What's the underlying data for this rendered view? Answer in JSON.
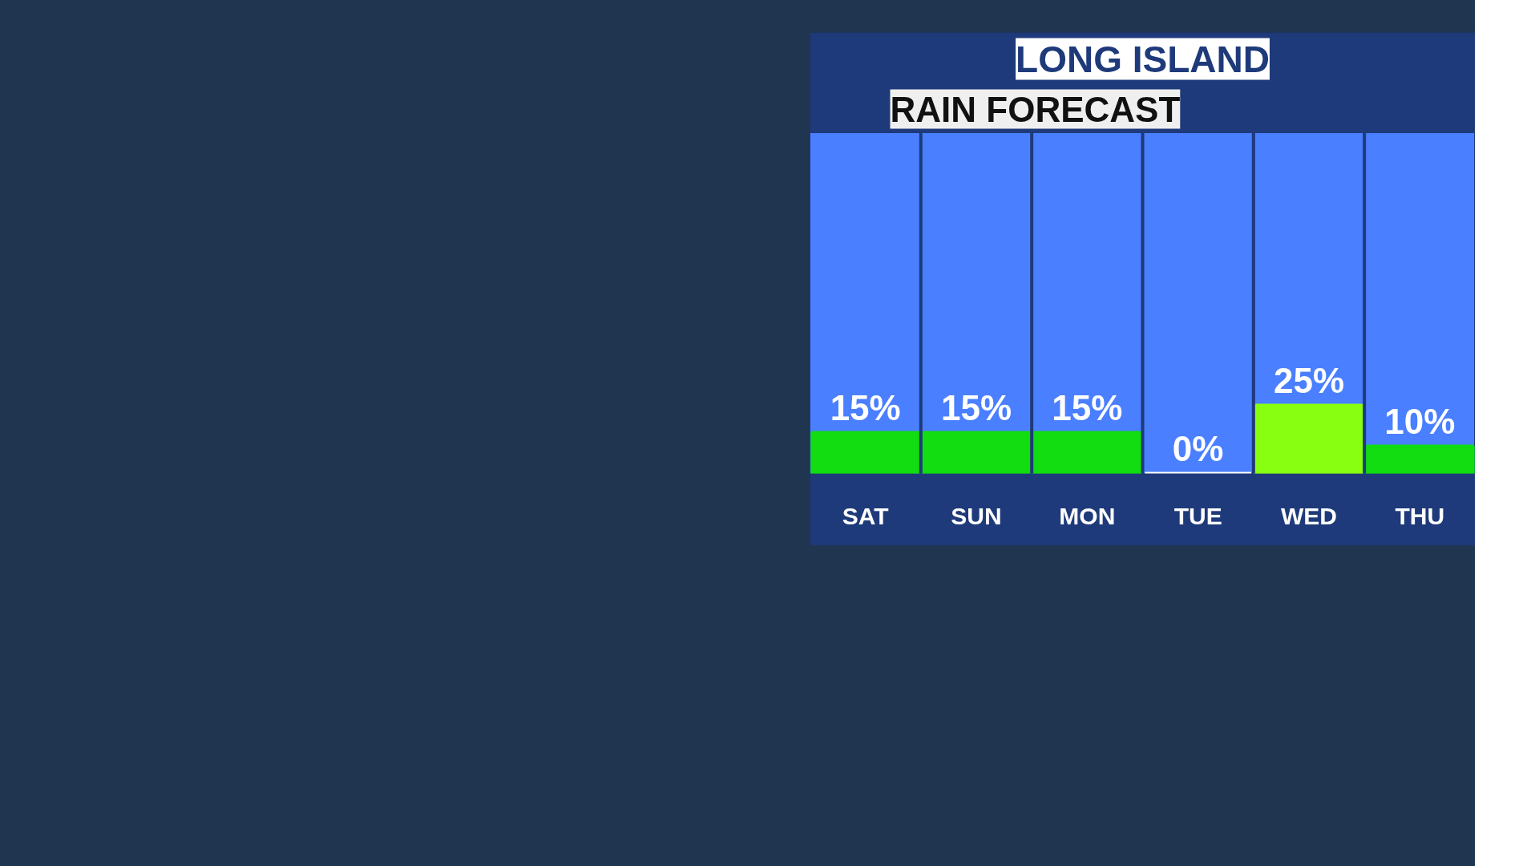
{
  "chart_data": {
    "type": "bar",
    "title": "RAIN FORECAST",
    "subtitle": "LONG ISLAND",
    "categories": [
      "SAT",
      "SUN",
      "MON",
      "TUE",
      "WED",
      "THU"
    ],
    "values": [
      15,
      15,
      15,
      0,
      25,
      10
    ],
    "colors": [
      "#11dd11",
      "#11dd11",
      "#11dd11",
      "#ffffff",
      "#88ff11",
      "#11dd11"
    ],
    "value_labels": [
      "15%",
      "15%",
      "15%",
      "0%",
      "25%",
      "10%"
    ]
  }
}
